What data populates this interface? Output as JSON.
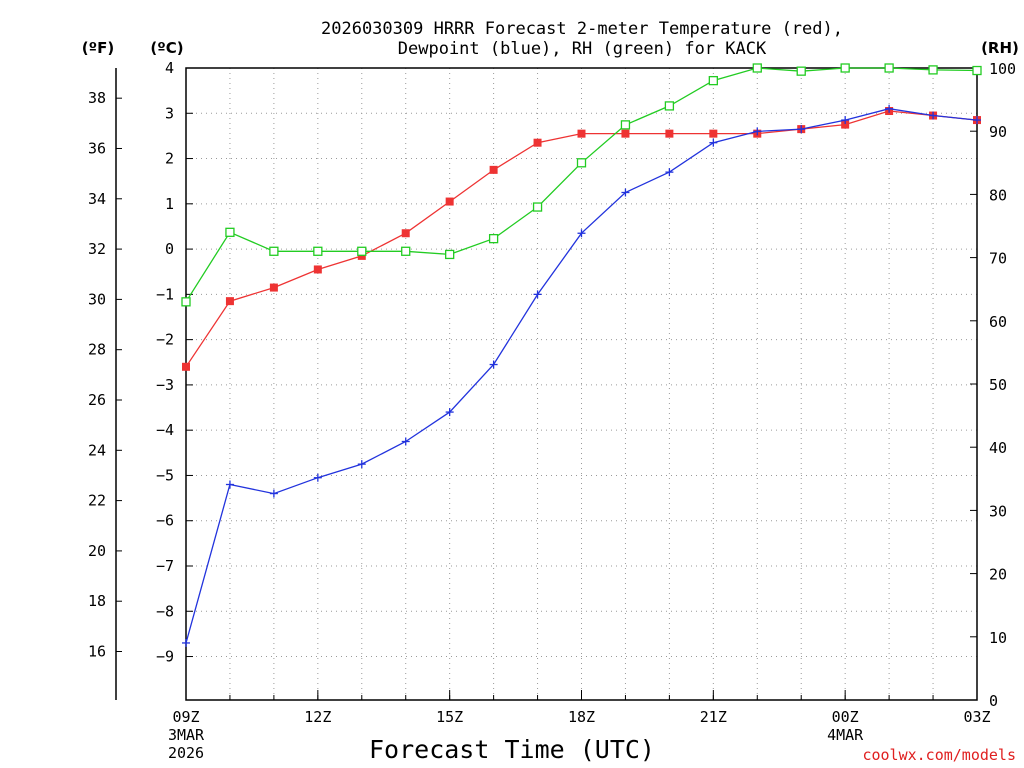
{
  "chart_data": {
    "type": "line",
    "title_line1": "2026030309 HRRR Forecast 2-meter Temperature (red),",
    "title_line2": "Dewpoint (blue), RH (green) for KACK",
    "xlabel": "Forecast Time (UTC)",
    "credit": "coolwx.com/models",
    "units": {
      "left_f": "(ºF)",
      "left_c": "(ºC)",
      "right": "(RH)"
    },
    "x_hours": [
      0,
      1,
      2,
      3,
      4,
      5,
      6,
      7,
      8,
      9,
      10,
      11,
      12,
      13,
      14,
      15,
      16,
      17,
      18
    ],
    "x_ticks": [
      {
        "h": 0,
        "label": "09Z",
        "sub1": "3MAR",
        "sub2": "2026"
      },
      {
        "h": 3,
        "label": "12Z",
        "sub1": "",
        "sub2": ""
      },
      {
        "h": 6,
        "label": "15Z",
        "sub1": "",
        "sub2": ""
      },
      {
        "h": 9,
        "label": "18Z",
        "sub1": "",
        "sub2": ""
      },
      {
        "h": 12,
        "label": "21Z",
        "sub1": "",
        "sub2": ""
      },
      {
        "h": 15,
        "label": "00Z",
        "sub1": "4MAR",
        "sub2": ""
      },
      {
        "h": 18,
        "label": "03Z",
        "sub1": "",
        "sub2": ""
      }
    ],
    "ylim_c": [
      -9.96,
      4.0
    ],
    "c_ticks": [
      4,
      3,
      2,
      1,
      0,
      -1,
      -2,
      -3,
      -4,
      -5,
      -6,
      -7,
      -8,
      -9
    ],
    "c_tick_labels": [
      "4",
      "3",
      "2",
      "1",
      "0",
      "−1",
      "−2",
      "−3",
      "−4",
      "−5",
      "−6",
      "−7",
      "−8",
      "−9"
    ],
    "f_ticks": [
      38,
      36,
      34,
      32,
      30,
      28,
      26,
      24,
      22,
      20,
      18,
      16
    ],
    "f_tick_labels": [
      "38",
      "36",
      "34",
      "32",
      "30",
      "28",
      "26",
      "24",
      "22",
      "20",
      "18",
      "16"
    ],
    "ylim_rh": [
      0,
      100
    ],
    "rh_ticks": [
      100,
      90,
      80,
      70,
      60,
      50,
      40,
      30,
      20,
      10,
      0
    ],
    "rh_tick_labels": [
      "100",
      "90",
      "80",
      "70",
      "60",
      "50",
      "40",
      "30",
      "20",
      "10",
      "0"
    ],
    "series": [
      {
        "name": "Temperature",
        "units": "C",
        "color": "#ee3333",
        "marker": "filled-square",
        "values": [
          -2.6,
          -1.15,
          -0.85,
          -0.45,
          -0.15,
          0.35,
          1.05,
          1.75,
          2.35,
          2.55,
          2.55,
          2.55,
          2.55,
          2.55,
          2.65,
          2.75,
          3.05,
          2.95,
          2.85
        ]
      },
      {
        "name": "Dewpoint",
        "units": "C",
        "color": "#2233dd",
        "marker": "plus",
        "values": [
          -8.7,
          -5.2,
          -5.4,
          -5.05,
          -4.75,
          -4.25,
          -3.6,
          -2.55,
          -1.0,
          0.35,
          1.25,
          1.7,
          2.35,
          2.6,
          2.65,
          2.85,
          3.1,
          2.95,
          2.85
        ]
      },
      {
        "name": "RH",
        "units": "%",
        "color": "#22cc22",
        "marker": "open-square",
        "values": [
          63,
          74,
          71,
          71,
          71,
          71,
          70.5,
          73,
          78,
          85,
          91,
          94,
          98,
          100,
          99.5,
          100,
          100,
          99.7,
          99.6
        ]
      }
    ]
  }
}
